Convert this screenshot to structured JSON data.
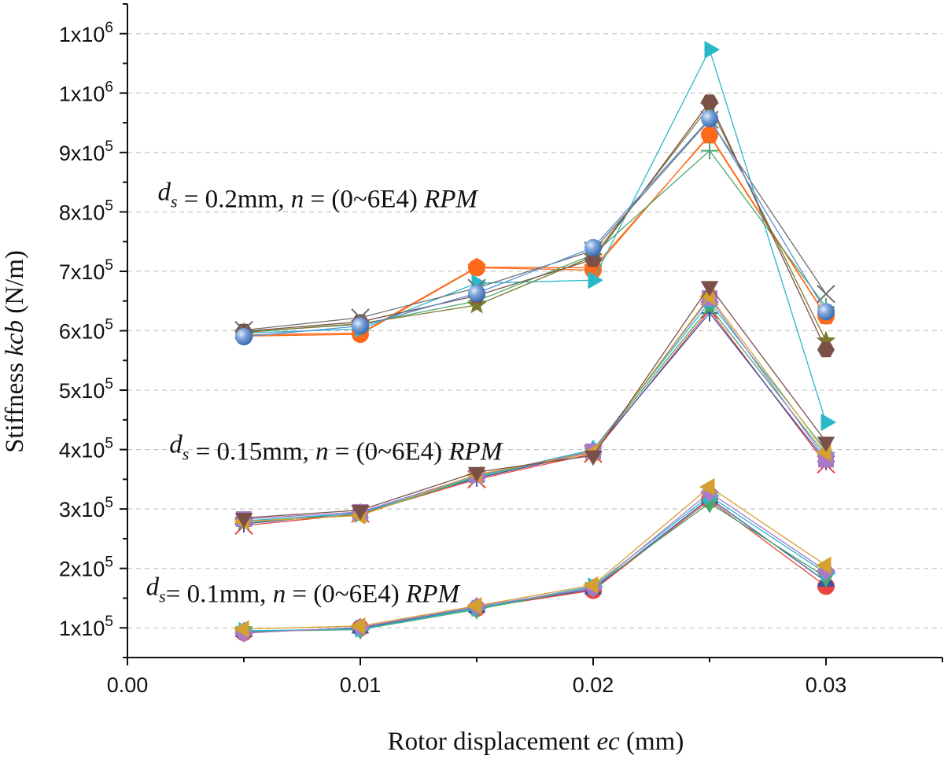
{
  "chart_data": {
    "type": "line",
    "xlabel": {
      "prefix": "Rotor displacement ",
      "var": "ec",
      "suffix": " (mm)"
    },
    "ylabel": {
      "prefix": "Stiffness ",
      "var": "kcb",
      "suffix": " (N/m)"
    },
    "xlim": [
      0,
      0.035
    ],
    "ylim": [
      50000,
      1150000
    ],
    "grid": "horizontal-dashed",
    "x_ticks": [
      0,
      0.01,
      0.02,
      0.03
    ],
    "x_tick_labels": [
      "0.00",
      "0.01",
      "0.02",
      "0.03"
    ],
    "y_ticks": [
      100000,
      200000,
      300000,
      400000,
      500000,
      600000,
      700000,
      800000,
      900000,
      1000000,
      1100000
    ],
    "y_tick_labels": [
      {
        "mant": "1x10",
        "exp": "5"
      },
      {
        "mant": "2x10",
        "exp": "5"
      },
      {
        "mant": "3x10",
        "exp": "5"
      },
      {
        "mant": "4x10",
        "exp": "5"
      },
      {
        "mant": "5x10",
        "exp": "5"
      },
      {
        "mant": "6x10",
        "exp": "5"
      },
      {
        "mant": "7x10",
        "exp": "5"
      },
      {
        "mant": "8x10",
        "exp": "5"
      },
      {
        "mant": "9x10",
        "exp": "5"
      },
      {
        "mant": "1x10",
        "exp": "6"
      },
      {
        "mant": "1x10",
        "exp": "6"
      }
    ],
    "x": [
      0.005,
      0.01,
      0.015,
      0.02,
      0.025,
      0.03
    ],
    "annotations": [
      {
        "d": "d",
        "s": "s",
        "text": " = 0.2mm, ",
        "n": "n",
        "mid": " = (0~6E4) ",
        "unit": "RPM",
        "at": [
          0.0013,
          820000
        ]
      },
      {
        "d": "d",
        "s": "s",
        "text": " = 0.15mm, ",
        "n": "n",
        "mid": " = (0~6E4) ",
        "unit": "RPM",
        "at": [
          0.0018,
          395000
        ]
      },
      {
        "d": "d",
        "s": "s",
        "text": "= 0.1mm, ",
        "n": "n",
        "mid": " = (0~6E4) ",
        "unit": "RPM",
        "at": [
          0.0008,
          155000
        ]
      }
    ],
    "groups": [
      {
        "series": [
          {
            "color": "#e8453c",
            "marker": "circle",
            "values": [
              92000,
              100000,
              133000,
              163000,
              315000,
              170000
            ]
          },
          {
            "color": "#3a52a8",
            "marker": "triangle-up",
            "values": [
              93000,
              99000,
              134000,
              165000,
              318000,
              178000
            ]
          },
          {
            "color": "#4aa86a",
            "marker": "triangle-down",
            "values": [
              94000,
              97000,
              131000,
              168000,
              310000,
              185000
            ]
          },
          {
            "color": "#2ab8c8",
            "marker": "triangle-right",
            "values": [
              95000,
              98000,
              133000,
              170000,
              322000,
              192000
            ]
          },
          {
            "color": "#a87ac8",
            "marker": "diamond",
            "values": [
              91000,
              101000,
              136000,
              167000,
              328000,
              196000
            ]
          },
          {
            "color": "#d4a030",
            "marker": "triangle-left",
            "values": [
              98000,
              103000,
              137000,
              172000,
              337000,
              205000
            ]
          }
        ]
      },
      {
        "series": [
          {
            "color": "#e8453c",
            "marker": "x",
            "values": [
              272000,
              292000,
              350000,
              393000,
              635000,
              375000
            ]
          },
          {
            "color": "#3a52a8",
            "marker": "plus",
            "values": [
              275000,
              294000,
              352000,
              396000,
              630000,
              380000
            ]
          },
          {
            "color": "#4aa86a",
            "marker": "star",
            "values": [
              278000,
              290000,
              354000,
              398000,
              640000,
              390000
            ]
          },
          {
            "color": "#2ab8c8",
            "marker": "triangle-up",
            "values": [
              280000,
              293000,
              355000,
              400000,
              648000,
              398000
            ]
          },
          {
            "color": "#a87ac8",
            "marker": "square",
            "values": [
              283000,
              295000,
              357000,
              397000,
              655000,
              383000
            ]
          },
          {
            "color": "#d4a030",
            "marker": "triangle-left",
            "values": [
              279000,
              289000,
              358000,
              395000,
              658000,
              395000
            ]
          },
          {
            "color": "#7a5048",
            "marker": "triangle-down",
            "values": [
              285000,
              298000,
              362000,
              390000,
              675000,
              413000
            ]
          }
        ]
      },
      {
        "series": [
          {
            "color": "#ff6a1a",
            "marker": "circle",
            "values": [
              591000,
              594000,
              706000,
              702000,
              930000,
              625000
            ]
          },
          {
            "color": "#ff6a1a",
            "marker": "pentagon",
            "values": [
              593000,
              596000,
              707000,
              706000,
              928000,
              624000
            ]
          },
          {
            "color": "#2ab8c8",
            "marker": "triangle-right",
            "values": [
              596000,
              603000,
              680000,
              685000,
              1073000,
              446000
            ]
          },
          {
            "color": "#4aa86a",
            "marker": "plus",
            "values": [
              598000,
              611000,
              650000,
              728000,
              903000,
              640000
            ]
          },
          {
            "color": "#7a7a30",
            "marker": "star",
            "values": [
              597000,
              612000,
              643000,
              725000,
              978000,
              583000
            ]
          },
          {
            "color": "#7a5048",
            "marker": "hexagon",
            "values": [
              599000,
              615000,
              659000,
              720000,
              985000,
              568000
            ]
          },
          {
            "color": "#707070",
            "marker": "x",
            "values": [
              601000,
              622000,
              672000,
              735000,
              955000,
              662000
            ]
          },
          {
            "color": "#5b8fd4",
            "marker": "sphere",
            "values": [
              590000,
              608000,
              663000,
              740000,
              957000,
              632000
            ]
          }
        ]
      }
    ]
  }
}
